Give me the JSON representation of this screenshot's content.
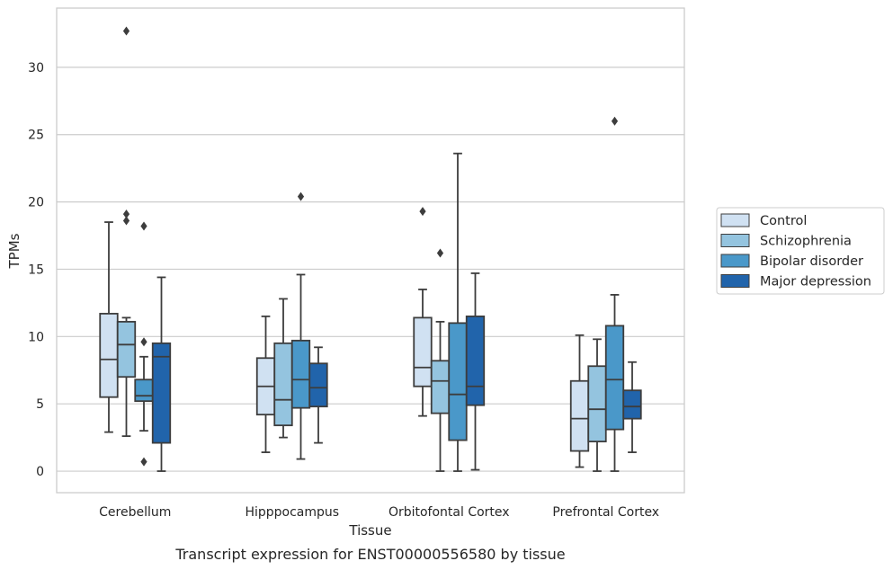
{
  "caption": "Transcript expression for ENST00000556580 by tissue",
  "chart_data": {
    "type": "boxplot",
    "xlabel": "Tissue",
    "ylabel": "TPMs",
    "ylim": [
      -1.6,
      34.4
    ],
    "yticks": [
      0,
      5,
      10,
      15,
      20,
      25,
      30
    ],
    "grid": "horizontal",
    "legend_position": "right",
    "categories": [
      "Cerebellum",
      "Hipppocampus",
      "Orbitofontal Cortex",
      "Prefrontal Cortex"
    ],
    "series": [
      {
        "name": "Control",
        "color": "#d0e1f2",
        "boxes": [
          {
            "whislo": 2.9,
            "q1": 5.5,
            "med": 8.3,
            "q3": 11.7,
            "whishi": 18.5,
            "fliers": []
          },
          {
            "whislo": 1.4,
            "q1": 4.2,
            "med": 6.3,
            "q3": 8.4,
            "whishi": 11.5,
            "fliers": []
          },
          {
            "whislo": 4.1,
            "q1": 6.3,
            "med": 7.7,
            "q3": 11.4,
            "whishi": 13.5,
            "fliers": [
              19.3
            ]
          },
          {
            "whislo": 0.3,
            "q1": 1.5,
            "med": 3.9,
            "q3": 6.7,
            "whishi": 10.1,
            "fliers": []
          }
        ]
      },
      {
        "name": "Schizophrenia",
        "color": "#94c4df",
        "boxes": [
          {
            "whislo": 2.6,
            "q1": 7.0,
            "med": 9.4,
            "q3": 11.1,
            "whishi": 11.4,
            "fliers": [
              18.6,
              19.1,
              32.7
            ]
          },
          {
            "whislo": 2.5,
            "q1": 3.4,
            "med": 5.3,
            "q3": 9.5,
            "whishi": 12.8,
            "fliers": []
          },
          {
            "whislo": 0.0,
            "q1": 4.3,
            "med": 6.7,
            "q3": 8.2,
            "whishi": 11.1,
            "fliers": [
              16.2
            ]
          },
          {
            "whislo": 0.0,
            "q1": 2.2,
            "med": 4.6,
            "q3": 7.8,
            "whishi": 9.8,
            "fliers": []
          }
        ]
      },
      {
        "name": "Bipolar disorder",
        "color": "#4a98c9",
        "boxes": [
          {
            "whislo": 3.0,
            "q1": 5.2,
            "med": 5.6,
            "q3": 6.8,
            "whishi": 8.5,
            "fliers": [
              0.7,
              9.6,
              18.2
            ]
          },
          {
            "whislo": 0.9,
            "q1": 4.7,
            "med": 6.8,
            "q3": 9.7,
            "whishi": 14.6,
            "fliers": [
              20.4
            ]
          },
          {
            "whislo": 0.0,
            "q1": 2.3,
            "med": 5.7,
            "q3": 11.0,
            "whishi": 23.6,
            "fliers": []
          },
          {
            "whislo": 0.0,
            "q1": 3.1,
            "med": 6.8,
            "q3": 10.8,
            "whishi": 13.1,
            "fliers": [
              26.0
            ]
          }
        ]
      },
      {
        "name": "Major depression",
        "color": "#2164ab",
        "boxes": [
          {
            "whislo": 0.0,
            "q1": 2.1,
            "med": 8.5,
            "q3": 9.5,
            "whishi": 14.4,
            "fliers": []
          },
          {
            "whislo": 2.1,
            "q1": 4.8,
            "med": 6.2,
            "q3": 8.0,
            "whishi": 9.2,
            "fliers": []
          },
          {
            "whislo": 0.1,
            "q1": 4.9,
            "med": 6.3,
            "q3": 11.5,
            "whishi": 14.7,
            "fliers": []
          },
          {
            "whislo": 1.4,
            "q1": 3.9,
            "med": 4.8,
            "q3": 6.0,
            "whishi": 8.1,
            "fliers": []
          }
        ]
      }
    ]
  }
}
